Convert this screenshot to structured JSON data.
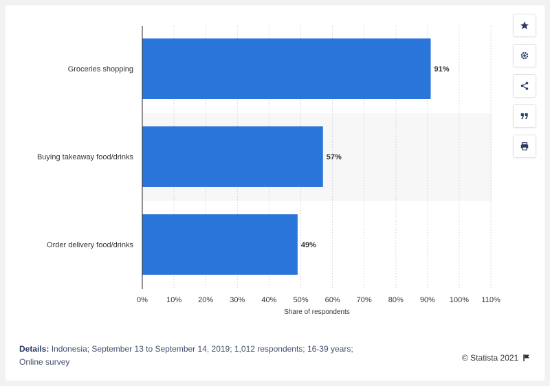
{
  "chart_data": {
    "type": "bar",
    "orientation": "horizontal",
    "categories": [
      "Groceries shopping",
      "Buying takeaway food/drinks",
      "Order delivery food/drinks"
    ],
    "values": [
      91,
      57,
      49
    ],
    "data_labels": [
      "91%",
      "57%",
      "49%"
    ],
    "xlabel": "Share of respondents",
    "ylabel": "",
    "xlim": [
      0,
      110
    ],
    "x_ticks": [
      "0%",
      "10%",
      "20%",
      "30%",
      "40%",
      "50%",
      "60%",
      "70%",
      "80%",
      "90%",
      "100%",
      "110%"
    ],
    "grid": true,
    "bar_color": "#2a75d9"
  },
  "toolbar": {
    "buttons": [
      "star-icon",
      "gear-icon",
      "share-icon",
      "quote-icon",
      "print-icon"
    ]
  },
  "footer": {
    "details_label": "Details:",
    "details_text": "Indonesia; September 13 to September 14, 2019; 1,012 respondents; 16-39 years; Online survey",
    "credit": "© Statista 2021"
  }
}
